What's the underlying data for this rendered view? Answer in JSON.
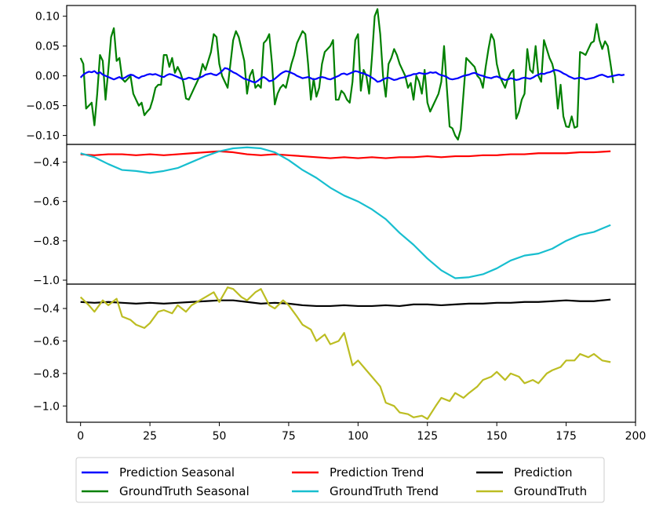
{
  "chart_data": {
    "type": "line",
    "x_ticks": [
      0,
      25,
      50,
      75,
      100,
      125,
      150,
      175,
      200
    ],
    "xlim": [
      -5,
      200
    ],
    "panels": [
      {
        "name": "seasonal",
        "ylim": [
          -0.115,
          0.118
        ],
        "y_ticks": [
          0.1,
          0.05,
          0.0,
          -0.05,
          -0.1
        ],
        "y_tick_labels": [
          "0.10",
          "0.05",
          "0.00",
          "−0.05",
          "−0.10"
        ],
        "series": [
          {
            "name": "GroundTruth Seasonal",
            "color": "#008000",
            "values": [
              0.03,
              0.02,
              -0.055,
              -0.05,
              -0.045,
              -0.083,
              -0.03,
              0.035,
              0.025,
              -0.04,
              0.01,
              0.065,
              0.08,
              0.025,
              0.03,
              -0.005,
              -0.01,
              -0.005,
              0.0,
              -0.03,
              -0.04,
              -0.05,
              -0.045,
              -0.066,
              -0.06,
              -0.055,
              -0.04,
              -0.02,
              -0.015,
              -0.015,
              0.035,
              0.035,
              0.015,
              0.03,
              0.005,
              0.015,
              0.005,
              -0.01,
              -0.038,
              -0.04,
              -0.03,
              -0.02,
              -0.01,
              0.0,
              0.02,
              0.01,
              0.025,
              0.04,
              0.07,
              0.065,
              0.02,
              0.0,
              -0.01,
              -0.02,
              0.02,
              0.06,
              0.075,
              0.065,
              0.045,
              0.025,
              -0.03,
              0.0,
              0.01,
              -0.02,
              -0.015,
              -0.02,
              0.055,
              0.06,
              0.07,
              0.02,
              -0.048,
              -0.03,
              -0.02,
              -0.015,
              -0.02,
              0.0,
              0.02,
              0.035,
              0.055,
              0.065,
              0.075,
              0.07,
              0.02,
              -0.04,
              -0.005,
              -0.035,
              -0.02,
              0.02,
              0.04,
              0.045,
              0.05,
              0.06,
              -0.04,
              -0.04,
              -0.025,
              -0.03,
              -0.04,
              -0.045,
              -0.01,
              0.06,
              0.07,
              -0.025,
              0.01,
              0.0,
              -0.03,
              0.03,
              0.1,
              0.112,
              0.07,
              0.0,
              -0.035,
              0.02,
              0.03,
              0.045,
              0.035,
              0.02,
              0.01,
              0.0,
              -0.02,
              -0.012,
              -0.04,
              0.0,
              -0.01,
              -0.03,
              0.01,
              -0.045,
              -0.06,
              -0.05,
              -0.04,
              -0.03,
              -0.01,
              0.05,
              -0.02,
              -0.085,
              -0.088,
              -0.1,
              -0.107,
              -0.09,
              -0.03,
              0.03,
              0.025,
              0.02,
              0.015,
              0.0,
              -0.005,
              -0.02,
              0.015,
              0.045,
              0.07,
              0.06,
              0.02,
              0.0,
              -0.01,
              -0.02,
              -0.005,
              0.005,
              0.01,
              -0.072,
              -0.06,
              -0.04,
              -0.03,
              0.045,
              0.01,
              0.005,
              0.05,
              0.0,
              -0.01,
              0.06,
              0.045,
              0.03,
              0.02,
              0.0,
              -0.055,
              -0.015,
              -0.068,
              -0.085,
              -0.086,
              -0.068,
              -0.087,
              -0.085,
              0.04,
              0.038,
              0.035,
              0.045,
              0.055,
              0.058,
              0.087,
              0.06,
              0.045,
              0.058,
              0.05,
              0.02,
              -0.012
            ]
          },
          {
            "name": "Prediction Seasonal",
            "color": "#0000ff",
            "values": [
              -0.003,
              0.002,
              0.005,
              0.007,
              0.006,
              0.008,
              0.004,
              0.006,
              0.002,
              0.0,
              -0.002,
              -0.004,
              -0.006,
              -0.004,
              -0.002,
              -0.005,
              -0.003,
              0.0,
              0.002,
              0.001,
              -0.002,
              -0.004,
              -0.001,
              0.0,
              0.002,
              0.003,
              0.002,
              0.003,
              0.001,
              -0.001,
              -0.002,
              0.001,
              0.003,
              0.002,
              0.0,
              -0.002,
              -0.004,
              -0.006,
              -0.005,
              -0.003,
              -0.004,
              -0.006,
              -0.005,
              -0.003,
              -0.001,
              0.002,
              0.003,
              0.004,
              0.002,
              0.001,
              0.004,
              0.008,
              0.013,
              0.012,
              0.009,
              0.006,
              0.004,
              0.001,
              -0.002,
              -0.005,
              -0.006,
              -0.008,
              -0.01,
              -0.011,
              -0.008,
              -0.004,
              -0.002,
              -0.005,
              -0.009,
              -0.008,
              -0.005,
              -0.001,
              0.003,
              0.006,
              0.008,
              0.007,
              0.005,
              0.003,
              0.0,
              -0.002,
              -0.004,
              -0.003,
              -0.002,
              -0.004,
              -0.006,
              -0.005,
              -0.003,
              -0.002,
              -0.003,
              -0.005,
              -0.006,
              -0.004,
              -0.002,
              0.0,
              0.003,
              0.004,
              0.002,
              0.004,
              0.006,
              0.008,
              0.007,
              0.005,
              0.004,
              0.002,
              0.0,
              -0.003,
              -0.006,
              -0.01,
              -0.009,
              -0.006,
              -0.004,
              -0.003,
              -0.005,
              -0.007,
              -0.006,
              -0.004,
              -0.003,
              -0.002,
              0.0,
              0.001,
              0.003,
              0.003,
              0.005,
              0.004,
              0.003,
              0.004,
              0.006,
              0.005,
              0.006,
              0.003,
              0.001,
              0.0,
              -0.002,
              -0.005,
              -0.006,
              -0.005,
              -0.004,
              -0.002,
              0.0,
              0.001,
              0.002,
              0.004,
              0.005,
              0.003,
              0.001,
              0.0,
              -0.002,
              -0.003,
              -0.004,
              -0.002,
              -0.001,
              -0.003,
              -0.005,
              -0.007,
              -0.006,
              -0.004,
              -0.005,
              -0.007,
              -0.006,
              -0.004,
              -0.003,
              -0.004,
              -0.005,
              -0.003,
              0.0,
              0.002,
              0.004,
              0.003,
              0.005,
              0.006,
              0.008,
              0.01,
              0.009,
              0.007,
              0.004,
              0.002,
              -0.001,
              -0.003,
              -0.005,
              -0.004,
              -0.003,
              -0.004,
              -0.006,
              -0.005,
              -0.004,
              -0.003,
              -0.001,
              0.001,
              0.002,
              0.0,
              -0.002,
              -0.001,
              0.0,
              0.001,
              0.002,
              0.001,
              0.002
            ]
          }
        ]
      },
      {
        "name": "trend",
        "ylim": [
          -1.02,
          -0.31
        ],
        "y_ticks": [
          -0.4,
          -0.6,
          -0.8,
          -1.0
        ],
        "y_tick_labels": [
          "−0.4",
          "−0.6",
          "−0.8",
          "−1.0"
        ],
        "series": [
          {
            "name": "Prediction Trend",
            "color": "#ff0000",
            "x": [
              0,
              5,
              10,
              15,
              20,
              25,
              30,
              35,
              40,
              45,
              50,
              55,
              60,
              65,
              70,
              75,
              80,
              85,
              90,
              95,
              100,
              105,
              110,
              115,
              120,
              125,
              130,
              135,
              140,
              145,
              150,
              155,
              160,
              165,
              170,
              175,
              180,
              185,
              191
            ],
            "values": [
              -0.36,
              -0.365,
              -0.36,
              -0.36,
              -0.365,
              -0.36,
              -0.365,
              -0.36,
              -0.355,
              -0.35,
              -0.345,
              -0.35,
              -0.36,
              -0.365,
              -0.36,
              -0.365,
              -0.37,
              -0.375,
              -0.38,
              -0.375,
              -0.38,
              -0.375,
              -0.38,
              -0.375,
              -0.375,
              -0.37,
              -0.375,
              -0.37,
              -0.37,
              -0.365,
              -0.365,
              -0.36,
              -0.36,
              -0.355,
              -0.355,
              -0.355,
              -0.35,
              -0.35,
              -0.345
            ]
          },
          {
            "name": "GroundTruth Trend",
            "color": "#17becf",
            "x": [
              0,
              5,
              10,
              15,
              20,
              25,
              30,
              35,
              40,
              45,
              50,
              55,
              60,
              65,
              70,
              75,
              80,
              85,
              90,
              95,
              100,
              105,
              110,
              115,
              120,
              125,
              130,
              135,
              140,
              145,
              150,
              155,
              160,
              165,
              170,
              175,
              180,
              185,
              191
            ],
            "values": [
              -0.355,
              -0.375,
              -0.41,
              -0.44,
              -0.445,
              -0.455,
              -0.445,
              -0.43,
              -0.4,
              -0.37,
              -0.345,
              -0.33,
              -0.325,
              -0.33,
              -0.35,
              -0.39,
              -0.44,
              -0.48,
              -0.53,
              -0.57,
              -0.6,
              -0.64,
              -0.69,
              -0.76,
              -0.82,
              -0.89,
              -0.95,
              -0.99,
              -0.985,
              -0.97,
              -0.94,
              -0.9,
              -0.875,
              -0.865,
              -0.84,
              -0.8,
              -0.77,
              -0.755,
              -0.72
            ]
          }
        ]
      },
      {
        "name": "combined",
        "ylim": [
          -1.1,
          -0.25
        ],
        "y_ticks": [
          -0.4,
          -0.6,
          -0.8,
          -1.0
        ],
        "y_tick_labels": [
          "−0.4",
          "−0.6",
          "−0.8",
          "−1.0"
        ],
        "series": [
          {
            "name": "Prediction",
            "color": "#000000",
            "x": [
              0,
              5,
              10,
              15,
              20,
              25,
              30,
              35,
              40,
              45,
              50,
              55,
              60,
              65,
              70,
              75,
              80,
              85,
              90,
              95,
              100,
              105,
              110,
              115,
              120,
              125,
              130,
              135,
              140,
              145,
              150,
              155,
              160,
              165,
              170,
              175,
              180,
              185,
              191
            ],
            "values": [
              -0.36,
              -0.365,
              -0.36,
              -0.365,
              -0.37,
              -0.365,
              -0.37,
              -0.365,
              -0.36,
              -0.355,
              -0.35,
              -0.35,
              -0.36,
              -0.37,
              -0.365,
              -0.37,
              -0.38,
              -0.385,
              -0.385,
              -0.38,
              -0.385,
              -0.385,
              -0.38,
              -0.385,
              -0.375,
              -0.375,
              -0.38,
              -0.375,
              -0.37,
              -0.37,
              -0.365,
              -0.365,
              -0.36,
              -0.36,
              -0.355,
              -0.35,
              -0.355,
              -0.355,
              -0.345
            ]
          },
          {
            "name": "GroundTruth",
            "color": "#bcbd22",
            "x": [
              0,
              3,
              5,
              8,
              10,
              13,
              15,
              18,
              20,
              23,
              25,
              28,
              30,
              33,
              35,
              38,
              40,
              43,
              45,
              48,
              50,
              53,
              55,
              58,
              60,
              63,
              65,
              68,
              70,
              73,
              75,
              78,
              80,
              83,
              85,
              88,
              90,
              93,
              95,
              98,
              100,
              103,
              105,
              108,
              110,
              113,
              115,
              118,
              120,
              123,
              125,
              128,
              130,
              133,
              135,
              138,
              140,
              143,
              145,
              148,
              150,
              153,
              155,
              158,
              160,
              163,
              165,
              168,
              170,
              173,
              175,
              178,
              180,
              183,
              185,
              188,
              191
            ],
            "values": [
              -0.33,
              -0.38,
              -0.42,
              -0.35,
              -0.38,
              -0.34,
              -0.45,
              -0.47,
              -0.5,
              -0.52,
              -0.49,
              -0.42,
              -0.41,
              -0.43,
              -0.38,
              -0.42,
              -0.38,
              -0.35,
              -0.33,
              -0.3,
              -0.36,
              -0.27,
              -0.28,
              -0.33,
              -0.35,
              -0.3,
              -0.28,
              -0.38,
              -0.4,
              -0.35,
              -0.38,
              -0.45,
              -0.5,
              -0.53,
              -0.6,
              -0.56,
              -0.62,
              -0.6,
              -0.55,
              -0.75,
              -0.72,
              -0.78,
              -0.82,
              -0.88,
              -0.98,
              -1.0,
              -1.04,
              -1.05,
              -1.07,
              -1.06,
              -1.08,
              -1.0,
              -0.95,
              -0.97,
              -0.92,
              -0.95,
              -0.92,
              -0.88,
              -0.84,
              -0.82,
              -0.79,
              -0.84,
              -0.8,
              -0.82,
              -0.86,
              -0.84,
              -0.86,
              -0.8,
              -0.78,
              -0.76,
              -0.72,
              -0.72,
              -0.68,
              -0.7,
              -0.68,
              -0.72,
              -0.73
            ]
          }
        ]
      }
    ],
    "legend": {
      "placement": "bottom-center",
      "columns": 3,
      "entries": [
        {
          "label": "Prediction Seasonal",
          "color": "#0000ff"
        },
        {
          "label": "GroundTruth Seasonal",
          "color": "#008000"
        },
        {
          "label": "Prediction Trend",
          "color": "#ff0000"
        },
        {
          "label": "GroundTruth Trend",
          "color": "#17becf"
        },
        {
          "label": "Prediction",
          "color": "#000000"
        },
        {
          "label": "GroundTruth",
          "color": "#bcbd22"
        }
      ]
    }
  }
}
